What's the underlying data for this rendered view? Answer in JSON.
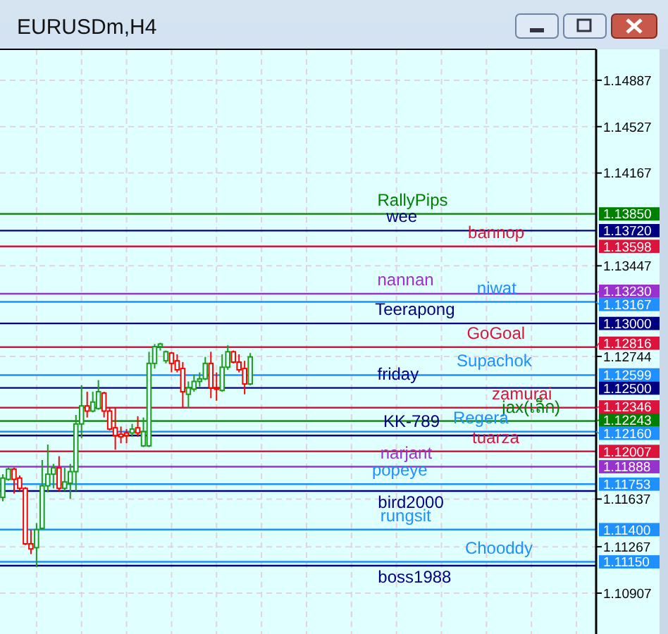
{
  "chart_data": {
    "type": "candlestick",
    "title": "EURUSDm,H4",
    "categories": [
      null,
      null,
      null,
      null,
      null,
      null,
      null,
      null,
      null,
      null,
      null,
      null,
      null,
      null,
      null,
      null,
      null,
      null,
      null,
      null,
      null,
      null,
      null,
      null,
      null,
      null,
      null,
      null,
      null,
      null,
      null,
      null,
      null,
      null,
      null,
      null,
      null,
      null,
      null,
      null,
      null,
      null,
      null,
      null,
      null,
      null,
      null,
      null,
      null,
      null,
      null,
      null,
      null,
      null,
      null,
      null,
      null,
      null,
      null,
      null,
      null,
      null,
      null,
      null,
      null,
      null,
      null,
      null,
      null,
      null,
      null,
      null,
      null,
      null,
      null,
      null,
      null,
      null,
      null,
      null,
      null,
      null,
      null,
      null,
      null,
      null,
      null,
      null,
      null,
      null,
      null,
      null,
      null,
      null,
      null,
      null,
      null,
      null,
      null,
      null,
      null,
      null,
      null,
      null,
      null,
      null
    ],
    "ohlc": [
      [
        1.1165,
        1.1183,
        1.1162,
        1.118
      ],
      [
        1.1179,
        1.1188,
        1.1178,
        1.1187
      ],
      [
        1.1187,
        1.1188,
        1.1168,
        1.1179
      ],
      [
        1.118,
        1.1182,
        1.117,
        1.1172
      ],
      [
        1.1172,
        1.1173,
        1.1128,
        1.1129
      ],
      [
        1.1129,
        1.114,
        1.1121,
        1.1125
      ],
      [
        1.1126,
        1.1145,
        1.1111,
        1.114
      ],
      [
        1.1141,
        1.1194,
        1.114,
        1.1174
      ],
      [
        1.1174,
        1.1206,
        1.1169,
        1.1183
      ],
      [
        1.1183,
        1.1191,
        1.1172,
        1.1188
      ],
      [
        1.1188,
        1.1197,
        1.117,
        1.1172
      ],
      [
        1.1172,
        1.1188,
        1.117,
        1.1177
      ],
      [
        1.1176,
        1.1191,
        1.1164,
        1.1185
      ],
      [
        1.1185,
        1.1229,
        1.117,
        1.1222
      ],
      [
        1.1222,
        1.1252,
        1.1211,
        1.1236
      ],
      [
        1.1236,
        1.1247,
        1.1227,
        1.1232
      ],
      [
        1.1232,
        1.1247,
        1.1231,
        1.1239
      ],
      [
        1.1234,
        1.1256,
        1.1233,
        1.1247
      ],
      [
        1.1246,
        1.1247,
        1.1227,
        1.1232
      ],
      [
        1.1232,
        1.1235,
        1.1217,
        1.1218
      ],
      [
        1.1219,
        1.1235,
        1.1202,
        1.1213
      ],
      [
        1.1214,
        1.122,
        1.1207,
        1.1212
      ],
      [
        1.1215,
        1.1218,
        1.1207,
        1.1213
      ],
      [
        1.1215,
        1.1222,
        1.1212,
        1.1218
      ],
      [
        1.1219,
        1.1228,
        1.1212,
        1.1215
      ],
      [
        1.1205,
        1.1227,
        1.1204,
        1.1216
      ],
      [
        1.1205,
        1.1278,
        1.1204,
        1.1269
      ],
      [
        1.1269,
        1.1284,
        1.1265,
        1.1282
      ],
      [
        1.1282,
        1.1285,
        1.1279,
        1.1284
      ],
      [
        1.1271,
        1.1279,
        1.1269,
        1.1278
      ],
      [
        1.1277,
        1.1278,
        1.1262,
        1.1269
      ],
      [
        1.1271,
        1.1276,
        1.1262,
        1.1264
      ],
      [
        1.1265,
        1.127,
        1.1235,
        1.1247
      ],
      [
        1.1245,
        1.1255,
        1.1234,
        1.125
      ],
      [
        1.1249,
        1.126,
        1.1247,
        1.1255
      ],
      [
        1.1255,
        1.1262,
        1.1251,
        1.1257
      ],
      [
        1.1257,
        1.1274,
        1.1256,
        1.1269
      ],
      [
        1.1269,
        1.1278,
        1.1242,
        1.125
      ],
      [
        1.125,
        1.1262,
        1.124,
        1.1249
      ],
      [
        1.1248,
        1.1276,
        1.1247,
        1.1266
      ],
      [
        1.1266,
        1.1283,
        1.1264,
        1.1278
      ],
      [
        1.1278,
        1.1279,
        1.1269,
        1.127
      ],
      [
        1.127,
        1.1276,
        1.1262,
        1.1264
      ],
      [
        1.1265,
        1.1271,
        1.1245,
        1.1253
      ],
      [
        1.1253,
        1.1277,
        1.1252,
        1.1274
      ],
      null,
      null,
      null,
      null,
      null,
      null,
      null,
      null,
      null,
      null,
      null,
      null,
      null,
      null,
      null,
      null,
      null,
      null,
      null,
      null,
      null,
      null,
      null,
      null,
      null,
      null,
      null,
      null,
      null,
      null,
      null,
      null,
      null,
      null,
      null,
      null,
      null,
      null,
      null,
      null,
      null,
      null,
      null,
      null,
      null,
      null,
      null,
      null,
      null,
      null,
      null,
      null,
      null,
      null,
      null,
      null,
      null,
      null,
      null,
      null,
      null
    ],
    "annotations": [
      "1.13850",
      "1.13720",
      "1.13598",
      "1.13230",
      "1.13167",
      "1.13000",
      "1.12816",
      "1.12599",
      "1.12500",
      "1.12346",
      "1.12243",
      "1.12160",
      "1.12007",
      "1.11888",
      "1.11753",
      "1.11400",
      "1.11150"
    ],
    "ylim": [
      1.1059,
      1.15127
    ],
    "yticks": [
      1.14887,
      1.14527,
      1.14167,
      1.13447,
      1.12744,
      1.11637,
      1.11267,
      1.10907
    ],
    "tick_labels": "y",
    "grid": true,
    "ref_lines": [
      {
        "axis": "y",
        "value": 1.1385,
        "label": "RallyPips",
        "color": "#008000"
      },
      {
        "axis": "y",
        "value": 1.1372,
        "label": "wee",
        "color": "#000080"
      },
      {
        "axis": "y",
        "value": 1.13598,
        "label": "bannop",
        "color": "#dc143c"
      },
      {
        "axis": "y",
        "value": 1.1323,
        "label": "nannan",
        "color": "#9932cc"
      },
      {
        "axis": "y",
        "value": 1.13167,
        "label": "niwat",
        "color": "#1e90ff"
      },
      {
        "axis": "y",
        "value": 1.13,
        "label": "Teerapong",
        "color": "#000080"
      },
      {
        "axis": "y",
        "value": 1.12816,
        "label": "GoGoal",
        "color": "#dc143c"
      },
      {
        "axis": "y",
        "value": 1.12599,
        "label": "Supachok",
        "color": "#1e90ff"
      },
      {
        "axis": "y",
        "value": 1.125,
        "label": "friday",
        "color": "#000080"
      },
      {
        "axis": "y",
        "value": 1.12346,
        "label": "zamurai",
        "color": "#dc143c"
      },
      {
        "axis": "y",
        "value": 1.12243,
        "label": "jax(เล็ก)",
        "color": "#008000"
      },
      {
        "axis": "y",
        "value": 1.1216,
        "label": "Regera",
        "color": "#1e90ff"
      },
      {
        "axis": "y",
        "value": 1.1213,
        "label": "KK-789",
        "color": "#000080"
      },
      {
        "axis": "y",
        "value": 1.12007,
        "label": "tuarza",
        "color": "#dc143c"
      },
      {
        "axis": "y",
        "value": 1.11888,
        "label": "narjant",
        "color": "#9932cc"
      },
      {
        "axis": "y",
        "value": 1.11753,
        "label": "popeye",
        "color": "#1e90ff"
      },
      {
        "axis": "y",
        "value": 1.117,
        "label": "bird2000",
        "color": "#000080"
      },
      {
        "axis": "y",
        "value": 1.114,
        "label": "rungsit",
        "color": "#1e90ff"
      },
      {
        "axis": "y",
        "value": 1.1115,
        "label": "Chooddy",
        "color": "#1e90ff"
      },
      {
        "axis": "y",
        "value": 1.1112,
        "label": "boss1988",
        "color": "#000080"
      }
    ]
  }
}
